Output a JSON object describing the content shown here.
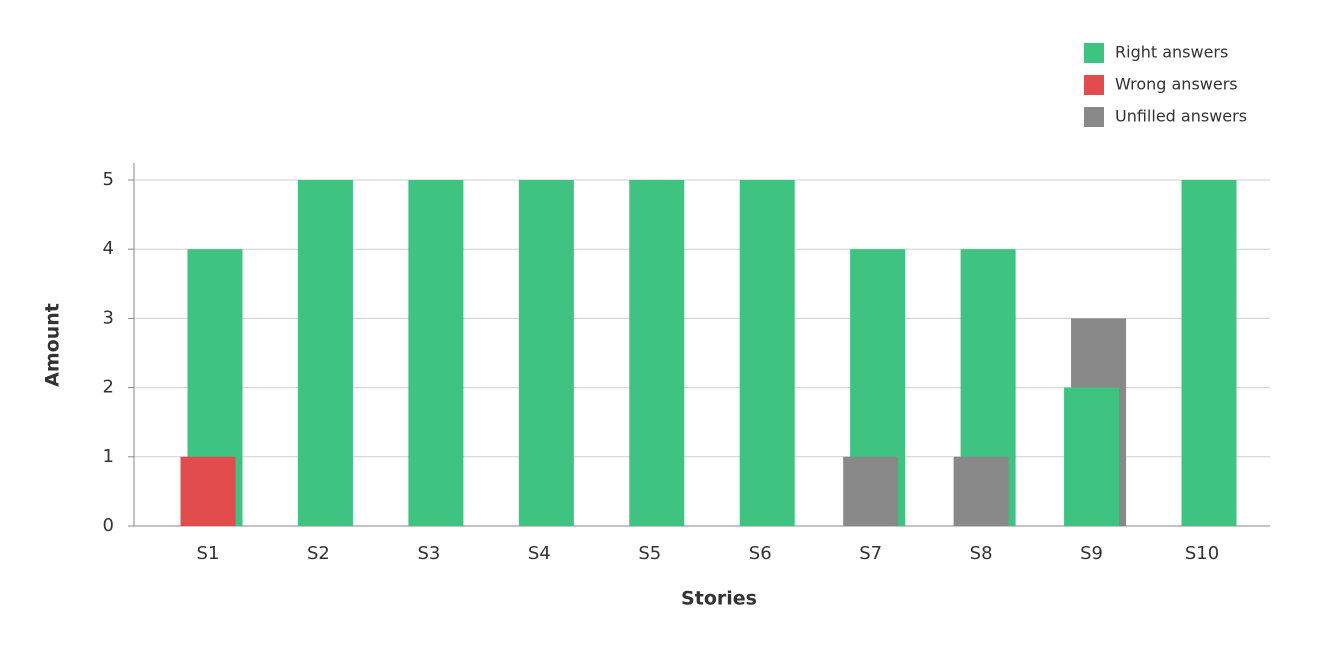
{
  "chart_data": {
    "type": "bar",
    "categories": [
      "S1",
      "S2",
      "S3",
      "S4",
      "S5",
      "S6",
      "S7",
      "S8",
      "S9",
      "S10"
    ],
    "series": [
      {
        "name": "Right answers",
        "color": "#3ec380",
        "values": [
          4,
          5,
          5,
          5,
          5,
          5,
          4,
          4,
          2,
          5
        ]
      },
      {
        "name": "Wrong answers",
        "color": "#e24c4c",
        "values": [
          1,
          null,
          null,
          null,
          null,
          null,
          null,
          null,
          null,
          null
        ]
      },
      {
        "name": "Unfilled answers",
        "color": "#898989",
        "values": [
          null,
          null,
          null,
          null,
          null,
          null,
          1,
          1,
          3,
          null
        ]
      }
    ],
    "x_label": "Stories",
    "y_label": "Amount",
    "ylim": [
      0,
      5
    ],
    "yticks": [
      0,
      1,
      2,
      3,
      4,
      5
    ],
    "grid": true,
    "legend": "top-right"
  }
}
